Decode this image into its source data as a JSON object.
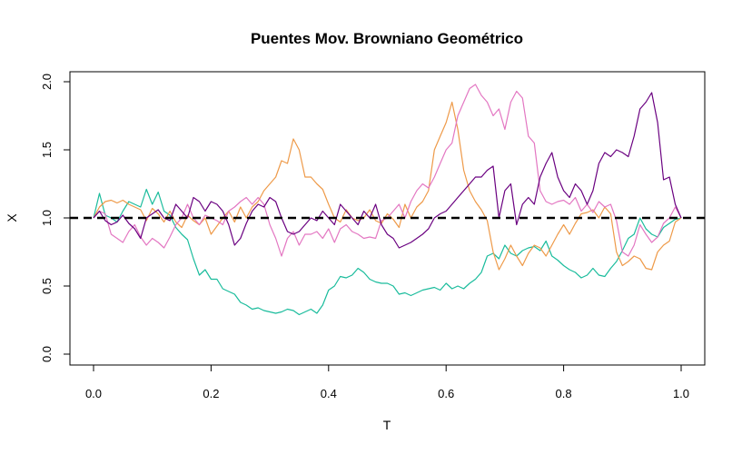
{
  "chart_data": {
    "type": "line",
    "title": "Puentes Mov. Browniano Geométrico",
    "xlabel": "T",
    "ylabel": "X",
    "xlim": [
      0,
      1
    ],
    "ylim": [
      0,
      2
    ],
    "xticks": [
      "0.0",
      "0.2",
      "0.4",
      "0.6",
      "0.8",
      "1.0"
    ],
    "yticks": [
      "0.0",
      "0.5",
      "1.0",
      "1.5",
      "2.0"
    ],
    "grid": false,
    "reference_line": {
      "y": 1.0,
      "style": "dashed",
      "color": "#000000"
    },
    "series": [
      {
        "color": "#1ABC9C",
        "x": [
          0,
          0.01,
          0.02,
          0.03,
          0.04,
          0.05,
          0.06,
          0.07,
          0.08,
          0.09,
          0.1,
          0.11,
          0.12,
          0.13,
          0.14,
          0.15,
          0.16,
          0.17,
          0.18,
          0.19,
          0.2,
          0.21,
          0.22,
          0.23,
          0.24,
          0.25,
          0.26,
          0.27,
          0.28,
          0.29,
          0.3,
          0.31,
          0.32,
          0.33,
          0.34,
          0.35,
          0.36,
          0.37,
          0.38,
          0.39,
          0.4,
          0.41,
          0.42,
          0.43,
          0.44,
          0.45,
          0.46,
          0.47,
          0.48,
          0.49,
          0.5,
          0.51,
          0.52,
          0.53,
          0.54,
          0.55,
          0.56,
          0.57,
          0.58,
          0.59,
          0.6,
          0.61,
          0.62,
          0.63,
          0.64,
          0.65,
          0.66,
          0.67,
          0.68,
          0.69,
          0.7,
          0.71,
          0.72,
          0.73,
          0.74,
          0.75,
          0.76,
          0.77,
          0.78,
          0.79,
          0.8,
          0.81,
          0.82,
          0.83,
          0.84,
          0.85,
          0.86,
          0.87,
          0.88,
          0.89,
          0.9,
          0.91,
          0.92,
          0.93,
          0.94,
          0.95,
          0.96,
          0.97,
          0.98,
          0.99,
          1.0
        ],
        "y": [
          1.0,
          1.18,
          1.02,
          1.0,
          0.97,
          1.05,
          1.12,
          1.1,
          1.08,
          1.21,
          1.1,
          1.19,
          1.05,
          1.02,
          0.93,
          0.88,
          0.84,
          0.7,
          0.58,
          0.62,
          0.55,
          0.55,
          0.48,
          0.46,
          0.44,
          0.38,
          0.36,
          0.33,
          0.34,
          0.32,
          0.31,
          0.3,
          0.31,
          0.33,
          0.32,
          0.29,
          0.31,
          0.33,
          0.3,
          0.36,
          0.47,
          0.5,
          0.57,
          0.56,
          0.58,
          0.63,
          0.6,
          0.55,
          0.53,
          0.52,
          0.52,
          0.5,
          0.44,
          0.45,
          0.43,
          0.45,
          0.47,
          0.48,
          0.49,
          0.47,
          0.52,
          0.48,
          0.5,
          0.48,
          0.52,
          0.55,
          0.6,
          0.72,
          0.74,
          0.7,
          0.8,
          0.74,
          0.72,
          0.76,
          0.78,
          0.79,
          0.76,
          0.83,
          0.72,
          0.69,
          0.65,
          0.62,
          0.6,
          0.56,
          0.58,
          0.63,
          0.58,
          0.57,
          0.63,
          0.68,
          0.76,
          0.85,
          0.88,
          1.0,
          0.92,
          0.88,
          0.86,
          0.93,
          0.96,
          0.99,
          1.0
        ]
      },
      {
        "color": "#EE9A49",
        "x": [
          0,
          0.01,
          0.02,
          0.03,
          0.04,
          0.05,
          0.06,
          0.07,
          0.08,
          0.09,
          0.1,
          0.11,
          0.12,
          0.13,
          0.14,
          0.15,
          0.16,
          0.17,
          0.18,
          0.19,
          0.2,
          0.21,
          0.22,
          0.23,
          0.24,
          0.25,
          0.26,
          0.27,
          0.28,
          0.29,
          0.3,
          0.31,
          0.32,
          0.33,
          0.34,
          0.35,
          0.36,
          0.37,
          0.38,
          0.39,
          0.4,
          0.41,
          0.42,
          0.43,
          0.44,
          0.45,
          0.46,
          0.47,
          0.48,
          0.49,
          0.5,
          0.51,
          0.52,
          0.53,
          0.54,
          0.55,
          0.56,
          0.57,
          0.58,
          0.59,
          0.6,
          0.61,
          0.62,
          0.63,
          0.64,
          0.65,
          0.66,
          0.67,
          0.68,
          0.69,
          0.7,
          0.71,
          0.72,
          0.73,
          0.74,
          0.75,
          0.76,
          0.77,
          0.78,
          0.79,
          0.8,
          0.81,
          0.82,
          0.83,
          0.84,
          0.85,
          0.86,
          0.87,
          0.88,
          0.89,
          0.9,
          0.91,
          0.92,
          0.93,
          0.94,
          0.95,
          0.96,
          0.97,
          0.98,
          0.99,
          1.0
        ],
        "y": [
          1.0,
          1.08,
          1.12,
          1.13,
          1.11,
          1.13,
          1.1,
          1.08,
          1.06,
          0.98,
          1.07,
          1.03,
          0.97,
          1.05,
          0.97,
          0.93,
          1.02,
          0.98,
          0.95,
          1.0,
          0.88,
          0.94,
          1.0,
          1.05,
          0.97,
          1.08,
          1.0,
          1.08,
          1.12,
          1.2,
          1.25,
          1.3,
          1.42,
          1.4,
          1.58,
          1.5,
          1.3,
          1.3,
          1.25,
          1.21,
          1.1,
          1.0,
          0.97,
          1.06,
          1.0,
          0.98,
          1.0,
          1.06,
          0.98,
          0.96,
          1.03,
          0.99,
          0.93,
          1.1,
          1.0,
          1.08,
          1.12,
          1.2,
          1.5,
          1.6,
          1.7,
          1.85,
          1.65,
          1.35,
          1.2,
          1.12,
          1.06,
          0.98,
          0.75,
          0.62,
          0.7,
          0.8,
          0.72,
          0.65,
          0.74,
          0.8,
          0.78,
          0.72,
          0.8,
          0.88,
          0.95,
          0.88,
          0.96,
          1.03,
          1.04,
          1.06,
          1.0,
          1.08,
          1.03,
          0.75,
          0.65,
          0.68,
          0.72,
          0.7,
          0.63,
          0.62,
          0.75,
          0.8,
          0.83,
          0.97,
          1.0
        ]
      },
      {
        "color": "#E377C2",
        "x": [
          0,
          0.01,
          0.02,
          0.03,
          0.04,
          0.05,
          0.06,
          0.07,
          0.08,
          0.09,
          0.1,
          0.11,
          0.12,
          0.13,
          0.14,
          0.15,
          0.16,
          0.17,
          0.18,
          0.19,
          0.2,
          0.21,
          0.22,
          0.23,
          0.24,
          0.25,
          0.26,
          0.27,
          0.28,
          0.29,
          0.3,
          0.31,
          0.32,
          0.33,
          0.34,
          0.35,
          0.36,
          0.37,
          0.38,
          0.39,
          0.4,
          0.41,
          0.42,
          0.43,
          0.44,
          0.45,
          0.46,
          0.47,
          0.48,
          0.49,
          0.5,
          0.51,
          0.52,
          0.53,
          0.54,
          0.55,
          0.56,
          0.57,
          0.58,
          0.59,
          0.6,
          0.61,
          0.62,
          0.63,
          0.64,
          0.65,
          0.66,
          0.67,
          0.68,
          0.69,
          0.7,
          0.71,
          0.72,
          0.73,
          0.74,
          0.75,
          0.76,
          0.77,
          0.78,
          0.79,
          0.8,
          0.81,
          0.82,
          0.83,
          0.84,
          0.85,
          0.86,
          0.87,
          0.88,
          0.89,
          0.9,
          0.91,
          0.92,
          0.93,
          0.94,
          0.95,
          0.96,
          0.97,
          0.98,
          0.99,
          1.0
        ],
        "y": [
          1.0,
          1.05,
          1.03,
          0.88,
          0.85,
          0.82,
          0.9,
          0.95,
          0.86,
          0.8,
          0.85,
          0.82,
          0.78,
          0.86,
          0.95,
          1.0,
          1.1,
          1.0,
          0.95,
          1.02,
          1.0,
          0.98,
          0.95,
          1.05,
          1.08,
          1.12,
          1.15,
          1.1,
          1.15,
          1.1,
          0.95,
          0.85,
          0.72,
          0.85,
          0.9,
          0.8,
          0.88,
          0.88,
          0.9,
          0.85,
          0.92,
          0.82,
          0.92,
          0.95,
          0.9,
          0.88,
          0.85,
          0.86,
          0.85,
          0.98,
          1.0,
          1.05,
          1.1,
          1.0,
          1.12,
          1.2,
          1.25,
          1.22,
          1.3,
          1.4,
          1.5,
          1.55,
          1.75,
          1.85,
          1.95,
          1.98,
          1.9,
          1.85,
          1.75,
          1.8,
          1.65,
          1.85,
          1.93,
          1.88,
          1.6,
          1.55,
          1.2,
          1.12,
          1.1,
          1.12,
          1.13,
          1.1,
          1.15,
          1.05,
          1.1,
          1.04,
          1.12,
          1.08,
          1.1,
          0.98,
          0.75,
          0.72,
          0.8,
          0.95,
          0.88,
          0.82,
          0.86,
          0.96,
          1.0,
          1.08,
          1.0
        ]
      },
      {
        "color": "#6A0080",
        "x": [
          0,
          0.01,
          0.02,
          0.03,
          0.04,
          0.05,
          0.06,
          0.07,
          0.08,
          0.09,
          0.1,
          0.11,
          0.12,
          0.13,
          0.14,
          0.15,
          0.16,
          0.17,
          0.18,
          0.19,
          0.2,
          0.21,
          0.22,
          0.23,
          0.24,
          0.25,
          0.26,
          0.27,
          0.28,
          0.29,
          0.3,
          0.31,
          0.32,
          0.33,
          0.34,
          0.35,
          0.36,
          0.37,
          0.38,
          0.39,
          0.4,
          0.41,
          0.42,
          0.43,
          0.44,
          0.45,
          0.46,
          0.47,
          0.48,
          0.49,
          0.5,
          0.51,
          0.52,
          0.53,
          0.54,
          0.55,
          0.56,
          0.57,
          0.58,
          0.59,
          0.6,
          0.61,
          0.62,
          0.63,
          0.64,
          0.65,
          0.66,
          0.67,
          0.68,
          0.69,
          0.7,
          0.71,
          0.72,
          0.73,
          0.74,
          0.75,
          0.76,
          0.77,
          0.78,
          0.79,
          0.8,
          0.81,
          0.82,
          0.83,
          0.84,
          0.85,
          0.86,
          0.87,
          0.88,
          0.89,
          0.9,
          0.91,
          0.92,
          0.93,
          0.94,
          0.95,
          0.96,
          0.97,
          0.98,
          0.99,
          1.0
        ],
        "y": [
          1.0,
          1.05,
          0.98,
          0.95,
          0.97,
          1.02,
          0.96,
          0.92,
          0.85,
          1.0,
          1.03,
          1.06,
          1.0,
          0.98,
          1.1,
          1.05,
          1.0,
          1.15,
          1.12,
          1.05,
          1.12,
          1.1,
          1.05,
          0.95,
          0.8,
          0.85,
          0.96,
          1.05,
          1.1,
          1.08,
          1.15,
          1.12,
          1.0,
          0.9,
          0.88,
          0.9,
          0.95,
          1.0,
          0.98,
          1.05,
          1.0,
          0.95,
          1.1,
          1.05,
          1.0,
          0.95,
          1.05,
          1.0,
          1.1,
          0.95,
          0.88,
          0.85,
          0.78,
          0.8,
          0.82,
          0.85,
          0.88,
          0.92,
          1.0,
          1.03,
          1.05,
          1.1,
          1.15,
          1.2,
          1.25,
          1.3,
          1.3,
          1.35,
          1.38,
          1.0,
          1.2,
          1.25,
          0.95,
          1.1,
          1.15,
          1.1,
          1.3,
          1.4,
          1.48,
          1.3,
          1.2,
          1.15,
          1.25,
          1.2,
          1.1,
          1.2,
          1.4,
          1.48,
          1.45,
          1.5,
          1.48,
          1.45,
          1.6,
          1.8,
          1.85,
          1.92,
          1.7,
          1.28,
          1.3,
          1.1,
          1.0
        ]
      }
    ]
  }
}
